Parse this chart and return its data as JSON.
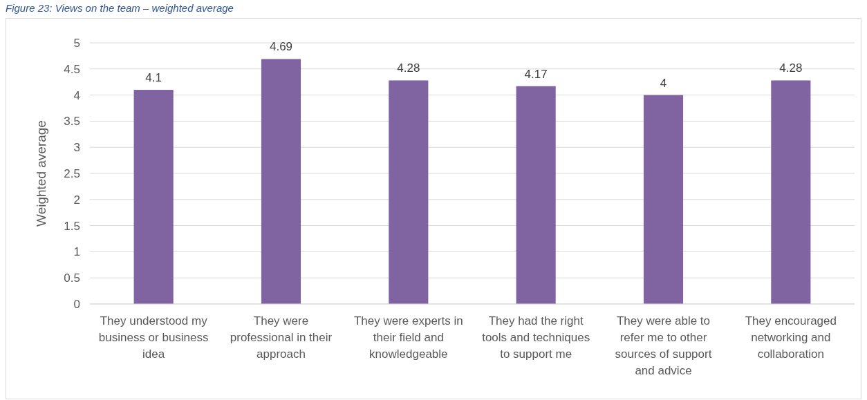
{
  "chart_data": {
    "type": "bar",
    "title": "Figure 23: Views on the team – weighted average",
    "ylabel": "Weighted average",
    "categories": [
      "They understood my business or business idea",
      "They were professional in their approach",
      "They were experts in their field and knowledgeable",
      "They had the right tools and techniques to support me",
      "They were able to refer me to other sources of support and advice",
      "They encouraged networking and collaboration"
    ],
    "values": [
      4.1,
      4.69,
      4.28,
      4.17,
      4,
      4.28
    ],
    "color": "#8064a2",
    "ylim": [
      0,
      5
    ],
    "yticks": [
      0,
      0.5,
      1,
      1.5,
      2,
      2.5,
      3,
      3.5,
      4,
      4.5,
      5
    ],
    "grid": "y",
    "data_labels": true
  }
}
